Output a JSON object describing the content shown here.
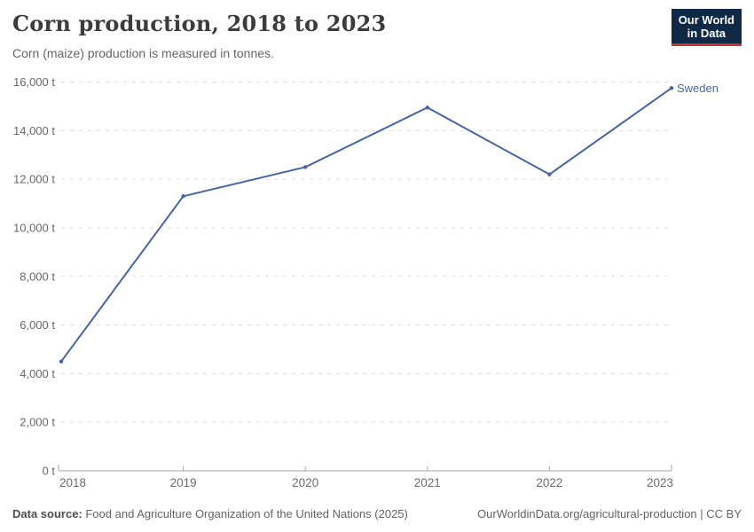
{
  "header": {
    "title": "Corn production, 2018 to 2023",
    "subtitle": "Corn (maize) production is measured in tonnes.",
    "logo": {
      "line1": "Our World",
      "line2": "in Data",
      "bg_color": "#0E2A47",
      "accent_color": "#C5372C"
    }
  },
  "chart_data": {
    "type": "line",
    "title": "Corn production, 2018 to 2023",
    "x": [
      2018,
      2019,
      2020,
      2021,
      2022,
      2023
    ],
    "series": [
      {
        "name": "Sweden",
        "color": "#4664A5",
        "values": [
          4500,
          11300,
          12500,
          14950,
          12200,
          15750
        ]
      }
    ],
    "ylim": [
      0,
      16000
    ],
    "ytick_interval": 2000,
    "ytick_suffix": " t",
    "yticks": [
      0,
      2000,
      4000,
      6000,
      8000,
      10000,
      12000,
      14000,
      16000
    ],
    "grid": "horizontal-dashed",
    "legend": "end-of-line-label"
  },
  "footer": {
    "source_label": "Data source:",
    "source_text": " Food and Agriculture Organization of the United Nations (2025)",
    "credit": "OurWorldinData.org/agricultural-production | CC BY"
  }
}
